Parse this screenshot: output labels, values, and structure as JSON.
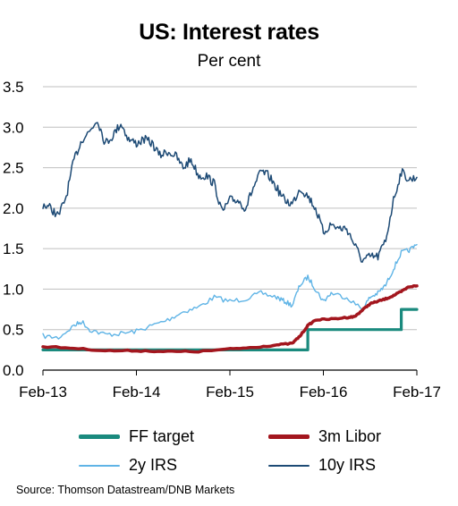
{
  "title": "US: Interest rates",
  "subtitle": "Per cent",
  "source": "Source: Thomson Datastream/DNB Markets",
  "chart_data": {
    "type": "line",
    "title": "US: Interest rates",
    "subtitle": "Per cent",
    "ylim": [
      0,
      3.5
    ],
    "yticks": [
      "0.0",
      "0.5",
      "1.0",
      "1.5",
      "2.0",
      "2.5",
      "3.0",
      "3.5"
    ],
    "xlim": [
      "2013-02",
      "2017-02"
    ],
    "xticks": [
      "Feb-13",
      "Feb-14",
      "Feb-15",
      "Feb-16",
      "Feb-17"
    ],
    "grid": true,
    "legend_position": "bottom",
    "series": [
      {
        "name": "FF target",
        "color": "#1a8a7e",
        "step": true,
        "points": [
          [
            "2013-02",
            0.25
          ],
          [
            "2015-12",
            0.25
          ],
          [
            "2015-12",
            0.5
          ],
          [
            "2016-12",
            0.5
          ],
          [
            "2016-12",
            0.75
          ],
          [
            "2017-02",
            0.75
          ]
        ]
      },
      {
        "name": "3m Libor",
        "color": "#a3161e",
        "points": [
          [
            "2013-02",
            0.29
          ],
          [
            "2013-06",
            0.27
          ],
          [
            "2013-10",
            0.24
          ],
          [
            "2014-02",
            0.24
          ],
          [
            "2014-06",
            0.23
          ],
          [
            "2014-10",
            0.23
          ],
          [
            "2015-02",
            0.26
          ],
          [
            "2015-05",
            0.28
          ],
          [
            "2015-08",
            0.31
          ],
          [
            "2015-10",
            0.33
          ],
          [
            "2015-11",
            0.42
          ],
          [
            "2015-12",
            0.55
          ],
          [
            "2016-01",
            0.62
          ],
          [
            "2016-03",
            0.63
          ],
          [
            "2016-05",
            0.65
          ],
          [
            "2016-06",
            0.66
          ],
          [
            "2016-07",
            0.74
          ],
          [
            "2016-08",
            0.82
          ],
          [
            "2016-09",
            0.85
          ],
          [
            "2016-10",
            0.88
          ],
          [
            "2016-11",
            0.92
          ],
          [
            "2016-12",
            0.97
          ],
          [
            "2017-01",
            1.03
          ],
          [
            "2017-02",
            1.04
          ]
        ]
      },
      {
        "name": "2y IRS",
        "color": "#5fb4e6",
        "points": [
          [
            "2013-02",
            0.42
          ],
          [
            "2013-04",
            0.4
          ],
          [
            "2013-06",
            0.55
          ],
          [
            "2013-07",
            0.6
          ],
          [
            "2013-08",
            0.5
          ],
          [
            "2013-10",
            0.44
          ],
          [
            "2013-12",
            0.45
          ],
          [
            "2014-02",
            0.48
          ],
          [
            "2014-04",
            0.55
          ],
          [
            "2014-06",
            0.62
          ],
          [
            "2014-08",
            0.72
          ],
          [
            "2014-10",
            0.78
          ],
          [
            "2014-12",
            0.9
          ],
          [
            "2015-02",
            0.85
          ],
          [
            "2015-04",
            0.88
          ],
          [
            "2015-06",
            0.95
          ],
          [
            "2015-08",
            0.9
          ],
          [
            "2015-09",
            0.85
          ],
          [
            "2015-10",
            0.8
          ],
          [
            "2015-11",
            1.05
          ],
          [
            "2015-12",
            1.15
          ],
          [
            "2016-01",
            1.0
          ],
          [
            "2016-02",
            0.85
          ],
          [
            "2016-03",
            0.95
          ],
          [
            "2016-05",
            0.9
          ],
          [
            "2016-07",
            0.75
          ],
          [
            "2016-08",
            0.9
          ],
          [
            "2016-09",
            0.95
          ],
          [
            "2016-10",
            1.05
          ],
          [
            "2016-11",
            1.25
          ],
          [
            "2016-12",
            1.45
          ],
          [
            "2017-01",
            1.48
          ],
          [
            "2017-02",
            1.55
          ]
        ]
      },
      {
        "name": "10y IRS",
        "color": "#1d4a75",
        "points": [
          [
            "2013-02",
            2.05
          ],
          [
            "2013-03",
            2.0
          ],
          [
            "2013-04",
            1.9
          ],
          [
            "2013-05",
            2.15
          ],
          [
            "2013-06",
            2.6
          ],
          [
            "2013-07",
            2.85
          ],
          [
            "2013-08",
            2.95
          ],
          [
            "2013-09",
            3.1
          ],
          [
            "2013-10",
            2.8
          ],
          [
            "2013-11",
            2.9
          ],
          [
            "2013-12",
            3.05
          ],
          [
            "2014-01",
            2.85
          ],
          [
            "2014-02",
            2.8
          ],
          [
            "2014-03",
            2.85
          ],
          [
            "2014-04",
            2.8
          ],
          [
            "2014-05",
            2.65
          ],
          [
            "2014-06",
            2.7
          ],
          [
            "2014-07",
            2.65
          ],
          [
            "2014-08",
            2.5
          ],
          [
            "2014-09",
            2.6
          ],
          [
            "2014-10",
            2.4
          ],
          [
            "2014-11",
            2.4
          ],
          [
            "2014-12",
            2.3
          ],
          [
            "2015-01",
            1.95
          ],
          [
            "2015-02",
            2.1
          ],
          [
            "2015-03",
            2.1
          ],
          [
            "2015-04",
            2.0
          ],
          [
            "2015-05",
            2.25
          ],
          [
            "2015-06",
            2.45
          ],
          [
            "2015-07",
            2.4
          ],
          [
            "2015-08",
            2.25
          ],
          [
            "2015-09",
            2.1
          ],
          [
            "2015-10",
            2.05
          ],
          [
            "2015-11",
            2.25
          ],
          [
            "2015-12",
            2.15
          ],
          [
            "2016-01",
            2.0
          ],
          [
            "2016-02",
            1.7
          ],
          [
            "2016-03",
            1.8
          ],
          [
            "2016-04",
            1.75
          ],
          [
            "2016-05",
            1.75
          ],
          [
            "2016-06",
            1.55
          ],
          [
            "2016-07",
            1.35
          ],
          [
            "2016-08",
            1.4
          ],
          [
            "2016-09",
            1.4
          ],
          [
            "2016-10",
            1.6
          ],
          [
            "2016-11",
            2.1
          ],
          [
            "2016-12",
            2.45
          ],
          [
            "2017-01",
            2.35
          ],
          [
            "2017-02",
            2.38
          ]
        ]
      }
    ]
  }
}
